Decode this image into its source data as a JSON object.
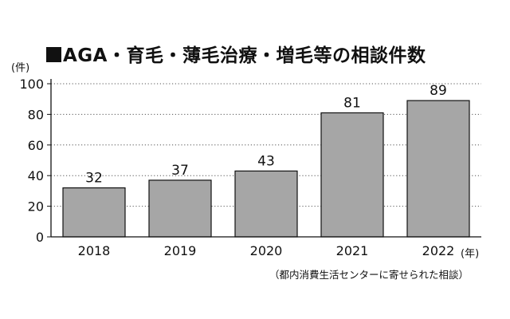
{
  "chart_data": {
    "type": "bar",
    "title": "AGA・育毛・薄毛治療・増毛等の相談件数",
    "y_unit": "(件)",
    "x_unit": "(年)",
    "categories": [
      "2018",
      "2019",
      "2020",
      "2021",
      "2022"
    ],
    "values": [
      32,
      37,
      43,
      81,
      89
    ],
    "data_labels": [
      "32",
      "37",
      "43",
      "81",
      "89"
    ],
    "ylim": [
      0,
      100
    ],
    "yticks": [
      0,
      20,
      40,
      60,
      80,
      100
    ],
    "grid": true,
    "bar_color": "#a6a6a6",
    "source_note": "（都内消費生活センターに寄せられた相談）"
  }
}
